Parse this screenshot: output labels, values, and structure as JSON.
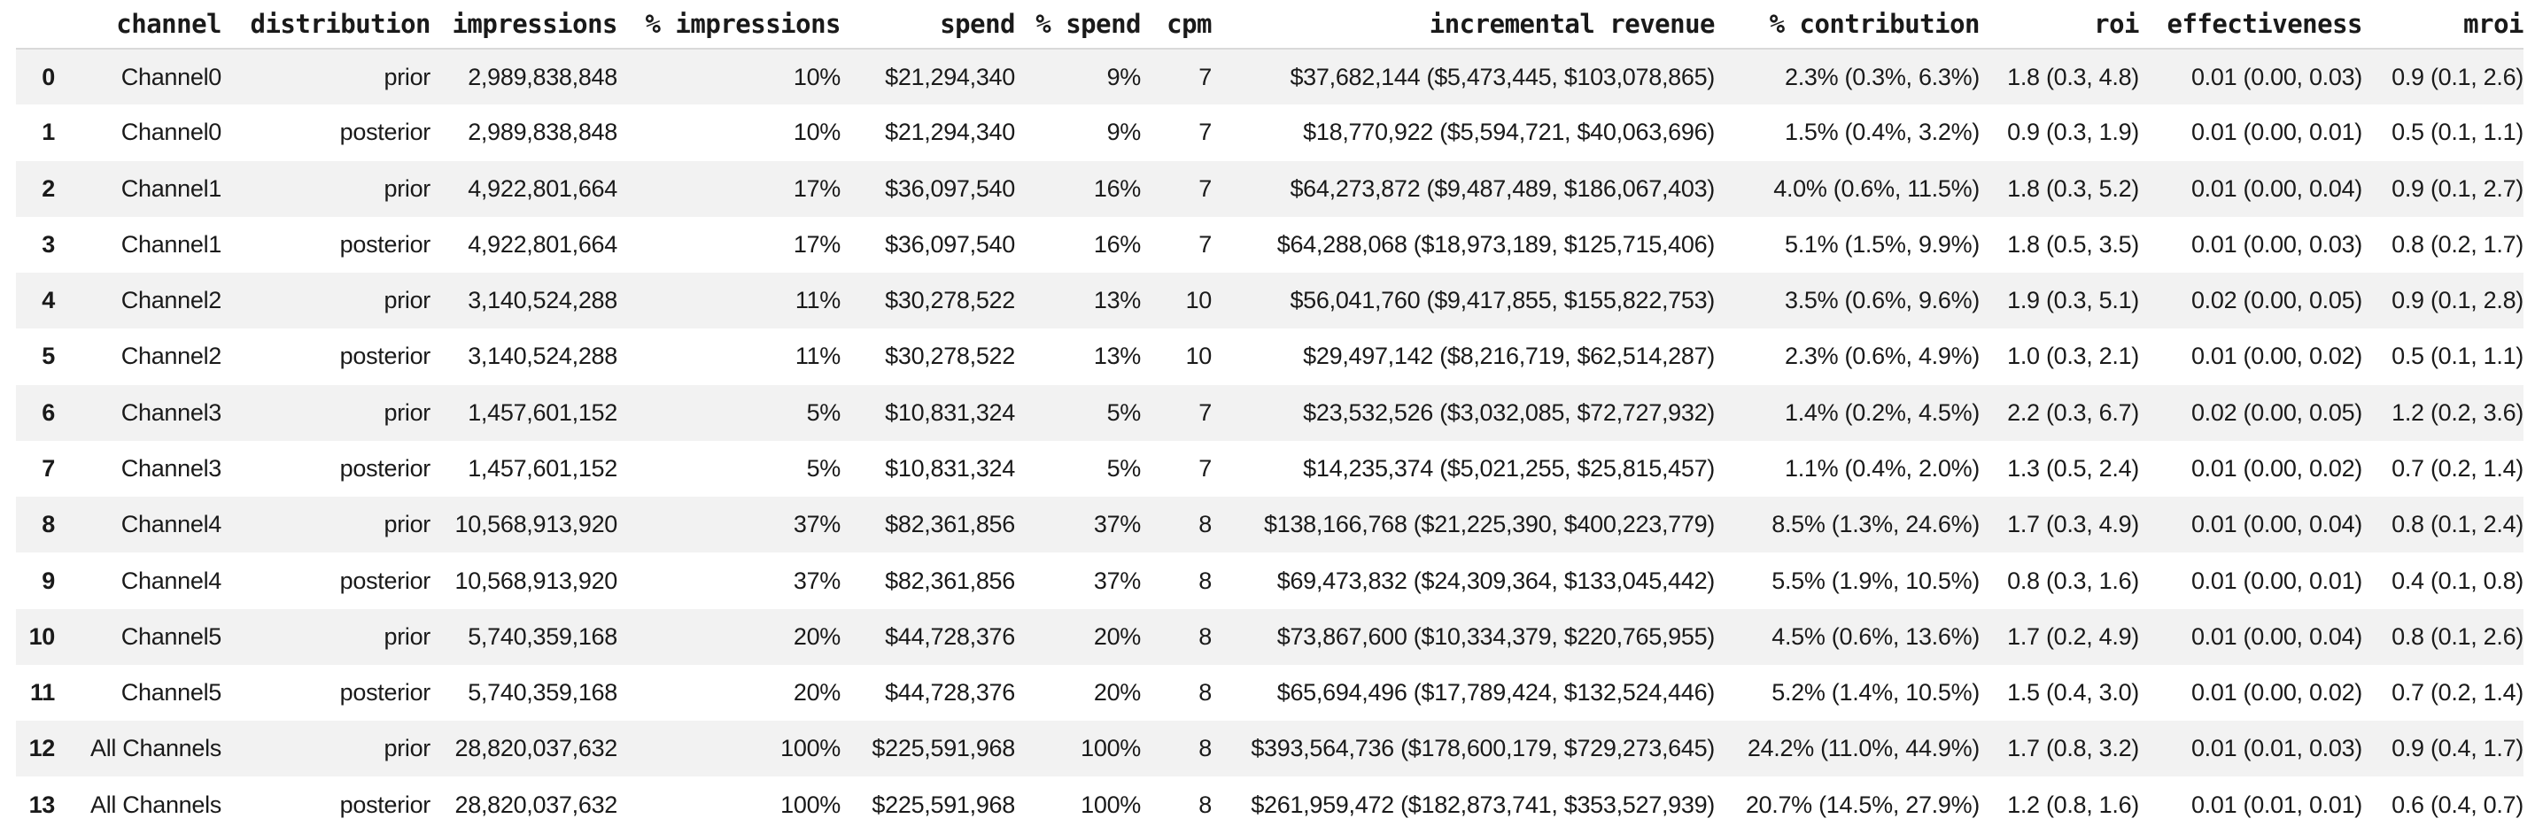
{
  "colors": {
    "stripe": "#f2f2f2",
    "header_border": "#d9d9d9",
    "text": "#1a1a1a",
    "background": "#ffffff"
  },
  "chart_data": {
    "type": "table",
    "title": "",
    "columns": [
      "",
      "channel",
      "distribution",
      "impressions",
      "% impressions",
      "spend",
      "% spend",
      "cpm",
      "incremental revenue",
      "% contribution",
      "roi",
      "effectiveness",
      "mroi"
    ],
    "rows": [
      [
        "0",
        "Channel0",
        "prior",
        "2,989,838,848",
        "10%",
        "$21,294,340",
        "9%",
        "7",
        "$37,682,144 ($5,473,445, $103,078,865)",
        "2.3% (0.3%, 6.3%)",
        "1.8 (0.3, 4.8)",
        "0.01 (0.00, 0.03)",
        "0.9 (0.1, 2.6)"
      ],
      [
        "1",
        "Channel0",
        "posterior",
        "2,989,838,848",
        "10%",
        "$21,294,340",
        "9%",
        "7",
        "$18,770,922 ($5,594,721, $40,063,696)",
        "1.5% (0.4%, 3.2%)",
        "0.9 (0.3, 1.9)",
        "0.01 (0.00, 0.01)",
        "0.5 (0.1, 1.1)"
      ],
      [
        "2",
        "Channel1",
        "prior",
        "4,922,801,664",
        "17%",
        "$36,097,540",
        "16%",
        "7",
        "$64,273,872 ($9,487,489, $186,067,403)",
        "4.0% (0.6%, 11.5%)",
        "1.8 (0.3, 5.2)",
        "0.01 (0.00, 0.04)",
        "0.9 (0.1, 2.7)"
      ],
      [
        "3",
        "Channel1",
        "posterior",
        "4,922,801,664",
        "17%",
        "$36,097,540",
        "16%",
        "7",
        "$64,288,068 ($18,973,189, $125,715,406)",
        "5.1% (1.5%, 9.9%)",
        "1.8 (0.5, 3.5)",
        "0.01 (0.00, 0.03)",
        "0.8 (0.2, 1.7)"
      ],
      [
        "4",
        "Channel2",
        "prior",
        "3,140,524,288",
        "11%",
        "$30,278,522",
        "13%",
        "10",
        "$56,041,760 ($9,417,855, $155,822,753)",
        "3.5% (0.6%, 9.6%)",
        "1.9 (0.3, 5.1)",
        "0.02 (0.00, 0.05)",
        "0.9 (0.1, 2.8)"
      ],
      [
        "5",
        "Channel2",
        "posterior",
        "3,140,524,288",
        "11%",
        "$30,278,522",
        "13%",
        "10",
        "$29,497,142 ($8,216,719, $62,514,287)",
        "2.3% (0.6%, 4.9%)",
        "1.0 (0.3, 2.1)",
        "0.01 (0.00, 0.02)",
        "0.5 (0.1, 1.1)"
      ],
      [
        "6",
        "Channel3",
        "prior",
        "1,457,601,152",
        "5%",
        "$10,831,324",
        "5%",
        "7",
        "$23,532,526 ($3,032,085, $72,727,932)",
        "1.4% (0.2%, 4.5%)",
        "2.2 (0.3, 6.7)",
        "0.02 (0.00, 0.05)",
        "1.2 (0.2, 3.6)"
      ],
      [
        "7",
        "Channel3",
        "posterior",
        "1,457,601,152",
        "5%",
        "$10,831,324",
        "5%",
        "7",
        "$14,235,374 ($5,021,255, $25,815,457)",
        "1.1% (0.4%, 2.0%)",
        "1.3 (0.5, 2.4)",
        "0.01 (0.00, 0.02)",
        "0.7 (0.2, 1.4)"
      ],
      [
        "8",
        "Channel4",
        "prior",
        "10,568,913,920",
        "37%",
        "$82,361,856",
        "37%",
        "8",
        "$138,166,768 ($21,225,390, $400,223,779)",
        "8.5% (1.3%, 24.6%)",
        "1.7 (0.3, 4.9)",
        "0.01 (0.00, 0.04)",
        "0.8 (0.1, 2.4)"
      ],
      [
        "9",
        "Channel4",
        "posterior",
        "10,568,913,920",
        "37%",
        "$82,361,856",
        "37%",
        "8",
        "$69,473,832 ($24,309,364, $133,045,442)",
        "5.5% (1.9%, 10.5%)",
        "0.8 (0.3, 1.6)",
        "0.01 (0.00, 0.01)",
        "0.4 (0.1, 0.8)"
      ],
      [
        "10",
        "Channel5",
        "prior",
        "5,740,359,168",
        "20%",
        "$44,728,376",
        "20%",
        "8",
        "$73,867,600 ($10,334,379, $220,765,955)",
        "4.5% (0.6%, 13.6%)",
        "1.7 (0.2, 4.9)",
        "0.01 (0.00, 0.04)",
        "0.8 (0.1, 2.6)"
      ],
      [
        "11",
        "Channel5",
        "posterior",
        "5,740,359,168",
        "20%",
        "$44,728,376",
        "20%",
        "8",
        "$65,694,496 ($17,789,424, $132,524,446)",
        "5.2% (1.4%, 10.5%)",
        "1.5 (0.4, 3.0)",
        "0.01 (0.00, 0.02)",
        "0.7 (0.2, 1.4)"
      ],
      [
        "12",
        "All Channels",
        "prior",
        "28,820,037,632",
        "100%",
        "$225,591,968",
        "100%",
        "8",
        "$393,564,736 ($178,600,179, $729,273,645)",
        "24.2% (11.0%, 44.9%)",
        "1.7 (0.8, 3.2)",
        "0.01 (0.01, 0.03)",
        "0.9 (0.4, 1.7)"
      ],
      [
        "13",
        "All Channels",
        "posterior",
        "28,820,037,632",
        "100%",
        "$225,591,968",
        "100%",
        "8",
        "$261,959,472 ($182,873,741, $353,527,939)",
        "20.7% (14.5%, 27.9%)",
        "1.2 (0.8, 1.6)",
        "0.01 (0.01, 0.01)",
        "0.6 (0.4, 0.7)"
      ]
    ]
  }
}
